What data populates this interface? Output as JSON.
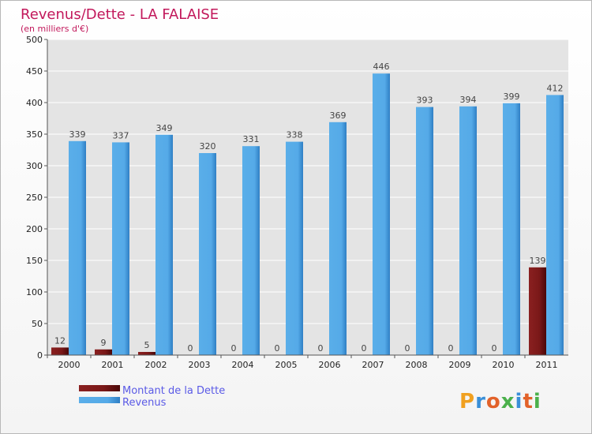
{
  "chart_data": {
    "type": "bar",
    "title": "Revenus/Dette - LA FALAISE",
    "subtitle": "(en milliers d'€)",
    "xlabel": "",
    "ylabel": "",
    "categories": [
      "2000",
      "2001",
      "2002",
      "2003",
      "2004",
      "2005",
      "2006",
      "2007",
      "2008",
      "2009",
      "2010",
      "2011"
    ],
    "series": [
      {
        "name": "Montant de la Dette",
        "color": "#6b1010",
        "values": [
          12,
          9,
          5,
          0,
          0,
          0,
          0,
          0,
          0,
          0,
          0,
          139
        ]
      },
      {
        "name": "Revenus",
        "color": "#4da2e4",
        "values": [
          339,
          337,
          349,
          320,
          331,
          338,
          369,
          446,
          393,
          394,
          399,
          412
        ]
      }
    ],
    "ylim": [
      0,
      500
    ],
    "yticks": [
      0,
      50,
      100,
      150,
      200,
      250,
      300,
      350,
      400,
      450,
      500
    ],
    "grid": true,
    "legend_position": "bottom-left"
  },
  "branding": {
    "logo_text": "Proxiti"
  },
  "colors": {
    "background": "#ffffff",
    "plot_background": "#e4e4e4",
    "gridline": "#ffffff",
    "title": "#c2185b",
    "legend_text": "#5a5ae6"
  }
}
